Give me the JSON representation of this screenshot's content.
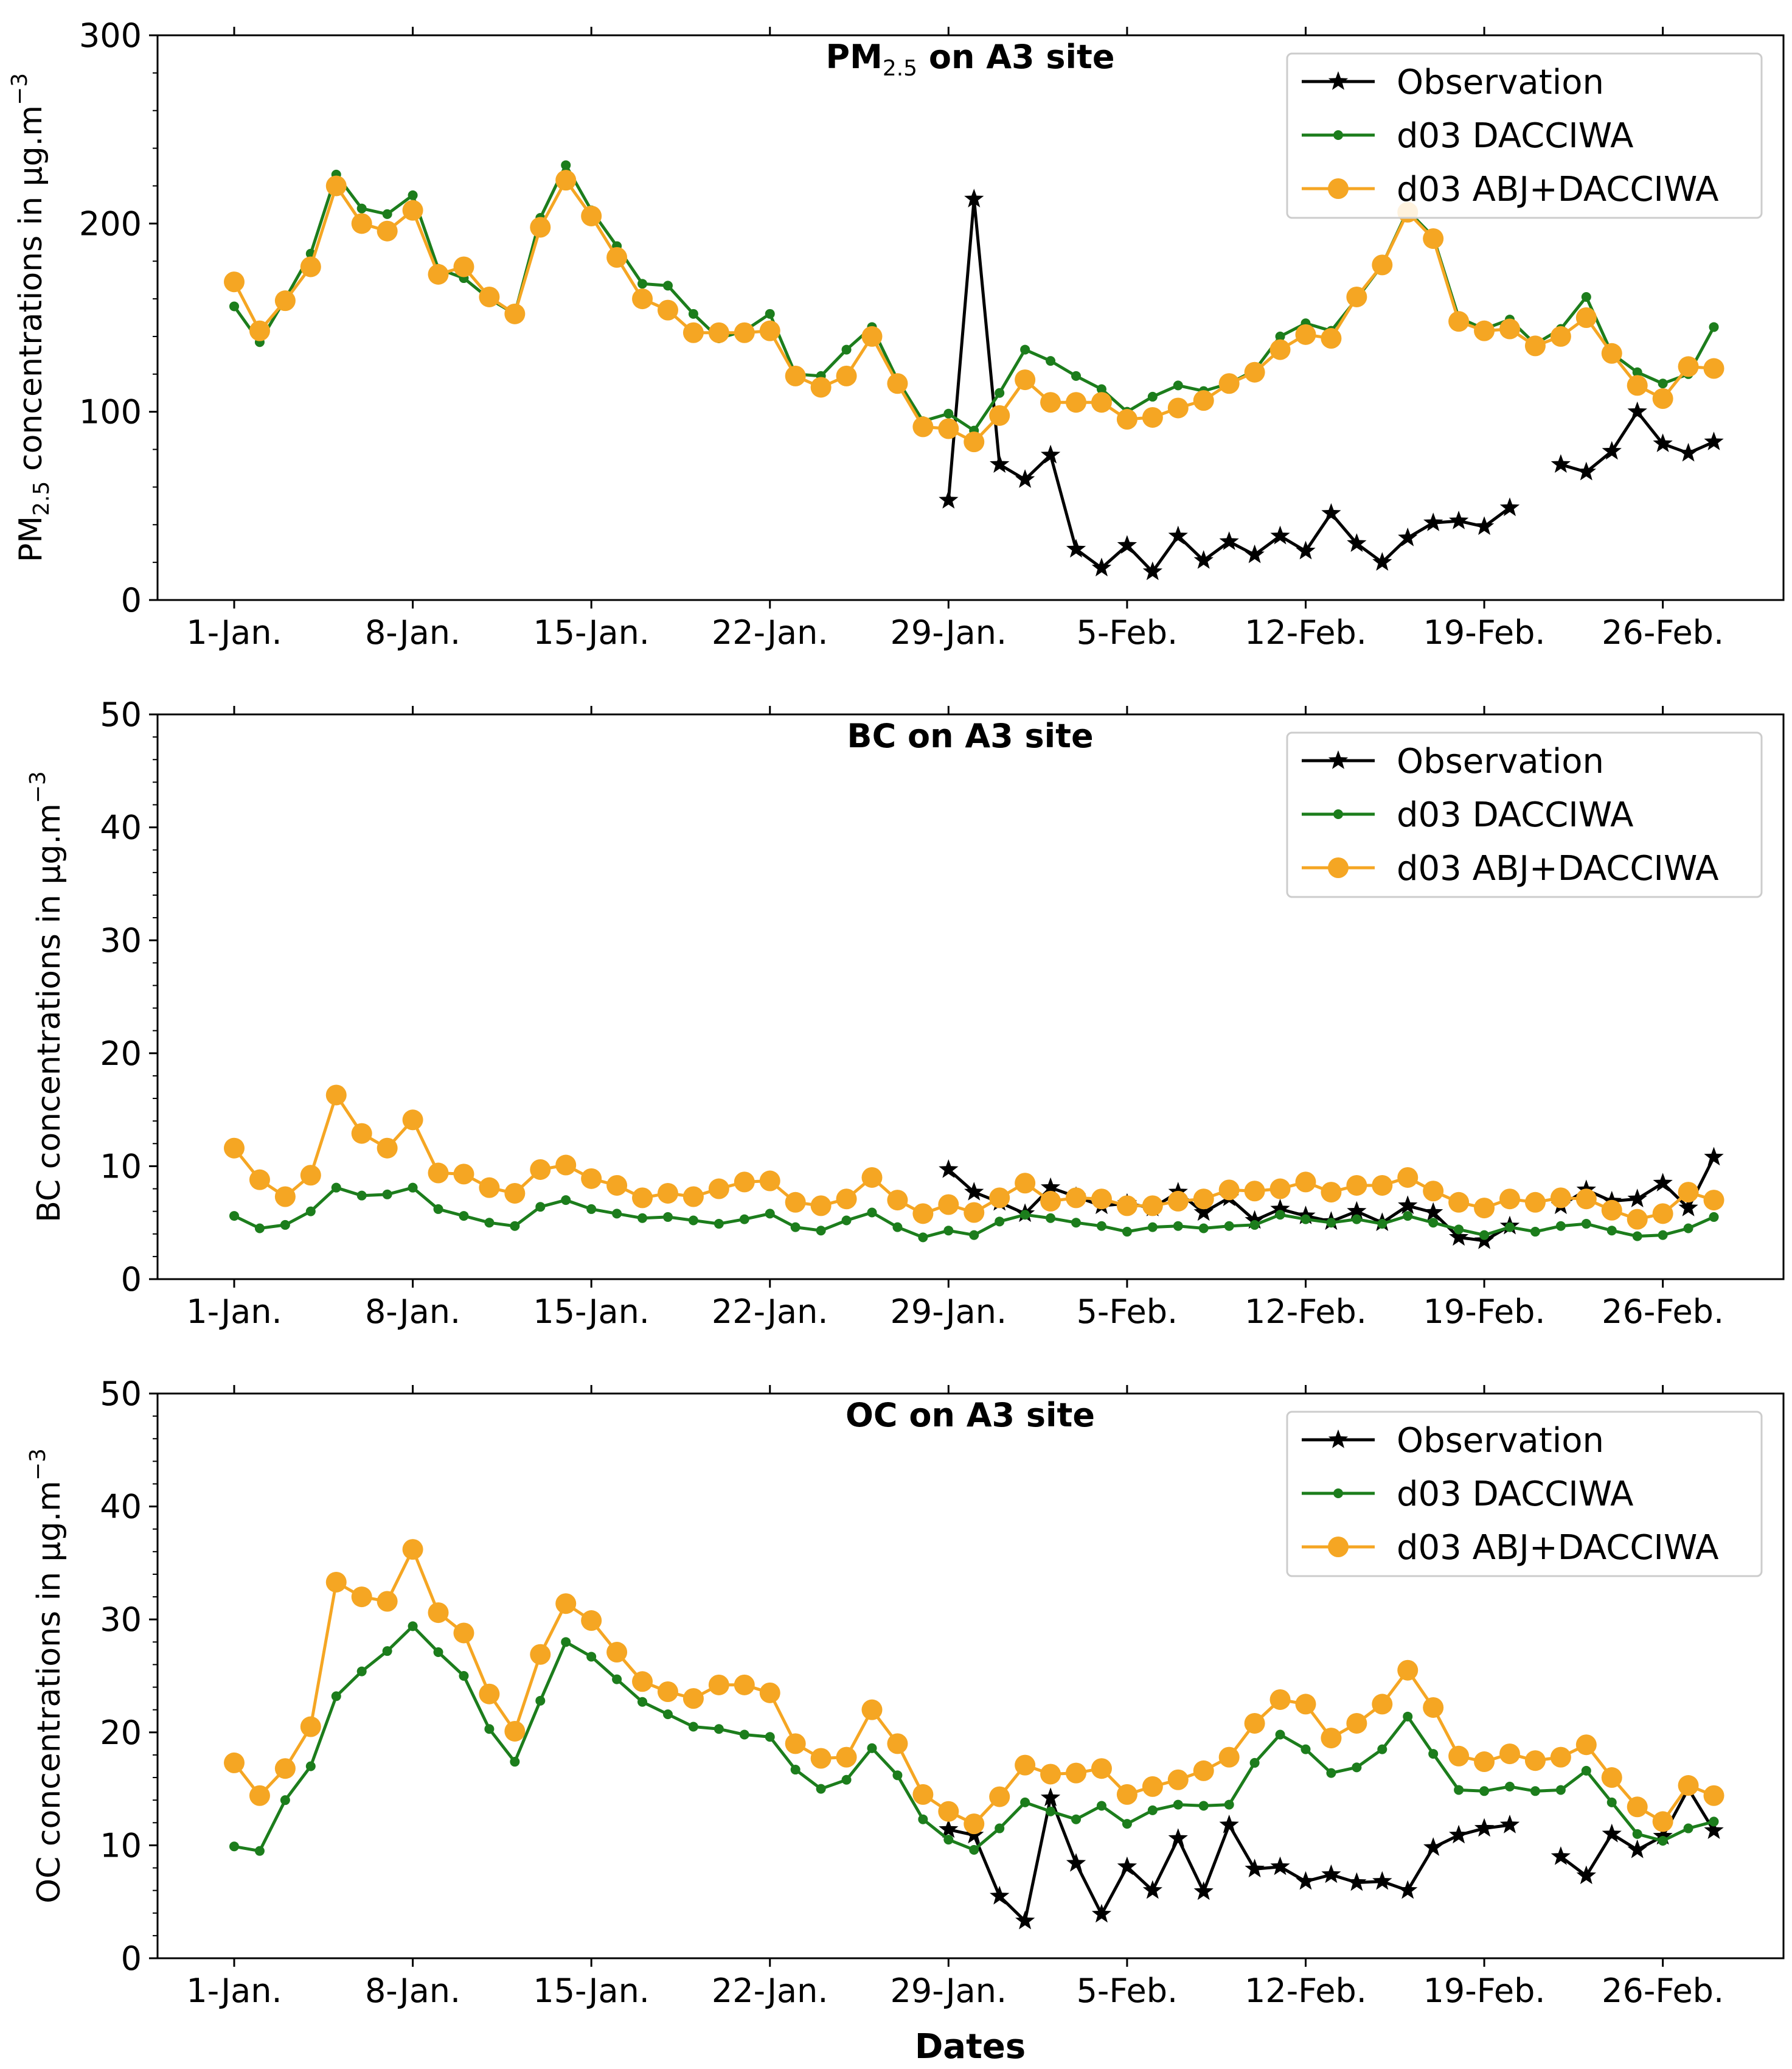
{
  "chart_data": [
    {
      "type": "line",
      "title": "PM2.5 on A3 site",
      "title_main": "PM",
      "title_sub": "2.5",
      "title_rest": " on A3 site",
      "ylabel": "PM2.5 concentrations in µg.m^-3",
      "ylabel_main": "PM",
      "ylabel_sub": "2.5",
      "ylabel_rest": " concentrations in µg.m",
      "ylabel_sup": "−3",
      "xlabel": "",
      "ylim": [
        0,
        300
      ],
      "yticks": [
        0,
        100,
        200,
        300
      ],
      "xticks": [
        {
          "x": 1,
          "label": "1-Jan."
        },
        {
          "x": 8,
          "label": "8-Jan."
        },
        {
          "x": 15,
          "label": "15-Jan."
        },
        {
          "x": 22,
          "label": "22-Jan."
        },
        {
          "x": 29,
          "label": "29-Jan."
        },
        {
          "x": 36,
          "label": "5-Feb."
        },
        {
          "x": 43,
          "label": "12-Feb."
        },
        {
          "x": 50,
          "label": "19-Feb."
        },
        {
          "x": 57,
          "label": "26-Feb."
        }
      ],
      "legend": [
        "Observation",
        "d03 DACCIWA",
        "d03 ABJ+DACCIWA"
      ],
      "legend_position": "top-right",
      "series": [
        {
          "name": "Observation",
          "color": "#000000",
          "marker": "star",
          "x_start": 29,
          "values": [
            53,
            213,
            72,
            64,
            77,
            27,
            17,
            29,
            15,
            34,
            21,
            31,
            24,
            34,
            26,
            46,
            30,
            20,
            33,
            41,
            42,
            39,
            49,
            null,
            72,
            68,
            79,
            100,
            83,
            78,
            84
          ]
        },
        {
          "name": "d03 DACCIWA",
          "color": "#1c7d1c",
          "marker": "dot",
          "x_start": 1,
          "values": [
            156,
            137,
            160,
            184,
            226,
            208,
            205,
            215,
            176,
            171,
            160,
            152,
            203,
            231,
            207,
            188,
            168,
            167,
            152,
            139,
            143,
            152,
            120,
            119,
            133,
            145,
            117,
            95,
            99,
            90,
            110,
            133,
            127,
            119,
            112,
            100,
            108,
            114,
            111,
            115,
            122,
            140,
            147,
            143,
            160,
            178,
            207,
            193,
            150,
            144,
            149,
            136,
            144,
            161,
            131,
            121,
            115,
            120,
            145
          ]
        },
        {
          "name": "d03 ABJ+DACCIWA",
          "color": "#f5a623",
          "marker": "circle",
          "x_start": 1,
          "values": [
            169,
            143,
            159,
            177,
            220,
            200,
            196,
            207,
            173,
            177,
            161,
            152,
            198,
            223,
            204,
            182,
            160,
            154,
            142,
            142,
            142,
            143,
            119,
            113,
            119,
            140,
            115,
            92,
            91,
            84,
            98,
            117,
            105,
            105,
            105,
            96,
            97,
            102,
            106,
            115,
            121,
            133,
            141,
            139,
            161,
            178,
            206,
            192,
            148,
            143,
            144,
            135,
            140,
            150,
            131,
            114,
            107,
            124,
            123
          ]
        }
      ]
    },
    {
      "type": "line",
      "title": "BC on A3 site",
      "title_main": "BC on A3 site",
      "title_sub": "",
      "title_rest": "",
      "ylabel": "BC concentrations in µg.m^-3",
      "ylabel_main": "BC concentrations in µg.m",
      "ylabel_sub": "",
      "ylabel_rest": "",
      "ylabel_sup": "−3",
      "xlabel": "",
      "ylim": [
        0,
        50
      ],
      "yticks": [
        0,
        10,
        20,
        30,
        40,
        50
      ],
      "xticks": [
        {
          "x": 1,
          "label": "1-Jan."
        },
        {
          "x": 8,
          "label": "8-Jan."
        },
        {
          "x": 15,
          "label": "15-Jan."
        },
        {
          "x": 22,
          "label": "22-Jan."
        },
        {
          "x": 29,
          "label": "29-Jan."
        },
        {
          "x": 36,
          "label": "5-Feb."
        },
        {
          "x": 43,
          "label": "12-Feb."
        },
        {
          "x": 50,
          "label": "19-Feb."
        },
        {
          "x": 57,
          "label": "26-Feb."
        }
      ],
      "legend": [
        "Observation",
        "d03 DACCIWA",
        "d03 ABJ+DACCIWA"
      ],
      "legend_position": "top-right",
      "series": [
        {
          "name": "Observation",
          "color": "#000000",
          "marker": "star",
          "x_start": 29,
          "values": [
            9.7,
            7.7,
            6.8,
            5.8,
            8.1,
            7.3,
            6.5,
            6.7,
            6.3,
            7.7,
            5.9,
            7.2,
            5.2,
            6.2,
            5.6,
            5.1,
            6.0,
            5.0,
            6.5,
            5.9,
            3.7,
            3.4,
            4.7,
            null,
            6.5,
            7.9,
            6.9,
            7.1,
            8.5,
            6.3,
            10.8
          ]
        },
        {
          "name": "d03 DACCIWA",
          "color": "#1c7d1c",
          "marker": "dot",
          "x_start": 1,
          "values": [
            5.6,
            4.5,
            4.8,
            6.0,
            8.1,
            7.4,
            7.5,
            8.1,
            6.2,
            5.6,
            5.0,
            4.7,
            6.4,
            7.0,
            6.2,
            5.8,
            5.4,
            5.5,
            5.2,
            4.9,
            5.3,
            5.8,
            4.6,
            4.3,
            5.2,
            5.9,
            4.6,
            3.7,
            4.3,
            3.9,
            5.1,
            5.7,
            5.4,
            5.0,
            4.7,
            4.2,
            4.6,
            4.7,
            4.5,
            4.7,
            4.8,
            5.7,
            5.3,
            5.0,
            5.3,
            4.9,
            5.6,
            5.0,
            4.4,
            3.9,
            4.6,
            4.2,
            4.7,
            4.9,
            4.3,
            3.8,
            3.9,
            4.5,
            5.5
          ]
        },
        {
          "name": "d03 ABJ+DACCIWA",
          "color": "#f5a623",
          "marker": "circle",
          "x_start": 1,
          "values": [
            11.6,
            8.8,
            7.3,
            9.2,
            16.3,
            12.9,
            11.6,
            14.1,
            9.4,
            9.3,
            8.1,
            7.6,
            9.7,
            10.1,
            8.9,
            8.3,
            7.2,
            7.6,
            7.3,
            8.0,
            8.6,
            8.7,
            6.8,
            6.5,
            7.1,
            9.0,
            7.0,
            5.8,
            6.6,
            5.9,
            7.2,
            8.5,
            6.9,
            7.2,
            7.1,
            6.5,
            6.5,
            6.9,
            7.1,
            7.9,
            7.8,
            8.0,
            8.6,
            7.7,
            8.3,
            8.3,
            9.0,
            7.8,
            6.8,
            6.3,
            7.1,
            6.8,
            7.2,
            7.1,
            6.1,
            5.3,
            5.8,
            7.7,
            7.0
          ]
        }
      ]
    },
    {
      "type": "line",
      "title": "OC on A3 site",
      "title_main": "OC on A3 site",
      "title_sub": "",
      "title_rest": "",
      "ylabel": "OC concentrations in µg.m^-3",
      "ylabel_main": "OC concentrations in µg.m",
      "ylabel_sub": "",
      "ylabel_rest": "",
      "ylabel_sup": "−3",
      "xlabel": "Dates",
      "ylim": [
        0,
        50
      ],
      "yticks": [
        0,
        10,
        20,
        30,
        40,
        50
      ],
      "xticks": [
        {
          "x": 1,
          "label": "1-Jan."
        },
        {
          "x": 8,
          "label": "8-Jan."
        },
        {
          "x": 15,
          "label": "15-Jan."
        },
        {
          "x": 22,
          "label": "22-Jan."
        },
        {
          "x": 29,
          "label": "29-Jan."
        },
        {
          "x": 36,
          "label": "5-Feb."
        },
        {
          "x": 43,
          "label": "12-Feb."
        },
        {
          "x": 50,
          "label": "19-Feb."
        },
        {
          "x": 57,
          "label": "26-Feb."
        }
      ],
      "legend": [
        "Observation",
        "d03 DACCIWA",
        "d03 ABJ+DACCIWA"
      ],
      "legend_position": "top-right",
      "series": [
        {
          "name": "Observation",
          "color": "#000000",
          "marker": "star",
          "x_start": 29,
          "values": [
            11.4,
            10.9,
            5.5,
            3.3,
            14.2,
            8.4,
            3.9,
            8.1,
            6.0,
            10.6,
            5.9,
            11.8,
            7.9,
            8.1,
            6.8,
            7.4,
            6.7,
            6.8,
            6.0,
            9.8,
            10.9,
            11.5,
            11.8,
            null,
            9.0,
            7.3,
            11.0,
            9.6,
            10.8,
            15.0,
            11.3
          ]
        },
        {
          "name": "d03 DACCIWA",
          "color": "#1c7d1c",
          "marker": "dot",
          "x_start": 1,
          "values": [
            9.9,
            9.5,
            14.0,
            17.0,
            23.2,
            25.4,
            27.2,
            29.4,
            27.1,
            25.0,
            20.3,
            17.4,
            22.8,
            28.0,
            26.7,
            24.7,
            22.7,
            21.6,
            20.5,
            20.3,
            19.8,
            19.6,
            16.7,
            15.0,
            15.8,
            18.6,
            16.2,
            12.3,
            10.5,
            9.6,
            11.5,
            13.8,
            13.0,
            12.3,
            13.5,
            11.9,
            13.1,
            13.6,
            13.5,
            13.6,
            17.3,
            19.8,
            18.5,
            16.4,
            16.9,
            18.5,
            21.4,
            18.1,
            14.9,
            14.8,
            15.2,
            14.8,
            14.9,
            16.6,
            13.8,
            11.0,
            10.4,
            11.5,
            12.1
          ]
        },
        {
          "name": "d03 ABJ+DACCIWA",
          "color": "#f5a623",
          "marker": "circle",
          "x_start": 1,
          "values": [
            17.3,
            14.4,
            16.8,
            20.5,
            33.3,
            32.0,
            31.6,
            36.2,
            30.6,
            28.8,
            23.4,
            20.1,
            26.9,
            31.4,
            29.9,
            27.1,
            24.5,
            23.6,
            23.0,
            24.2,
            24.2,
            23.5,
            19.0,
            17.7,
            17.8,
            22.0,
            19.0,
            14.5,
            13.0,
            11.9,
            14.3,
            17.1,
            16.3,
            16.4,
            16.8,
            14.5,
            15.2,
            15.8,
            16.6,
            17.8,
            20.8,
            22.9,
            22.5,
            19.5,
            20.8,
            22.5,
            25.5,
            22.2,
            17.9,
            17.4,
            18.1,
            17.5,
            17.8,
            18.9,
            16.0,
            13.4,
            12.1,
            15.3,
            14.4
          ]
        }
      ]
    }
  ]
}
